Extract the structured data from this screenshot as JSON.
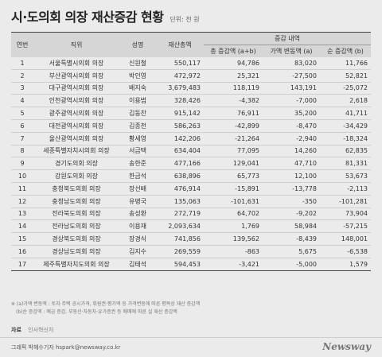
{
  "title": "시·도의회 의장 재산증감 현황",
  "unit": "단위: 천 원",
  "headers": {
    "no": "연번",
    "position": "직위",
    "name": "성명",
    "total": "재산총액",
    "change_group": "증감 내역",
    "total_change": "총 증감액 (a+b)",
    "price_change": "가액 변동액 (a)",
    "net_change": "순 증감액 (b)"
  },
  "rows": [
    {
      "no": "1",
      "position": "서울특별시의회 의장",
      "name": "신원철",
      "total": "550,117",
      "total_change": "94,786",
      "price_change": "83,020",
      "net_change": "11,766"
    },
    {
      "no": "2",
      "position": "부산광역시의회 의장",
      "name": "박인영",
      "total": "472,972",
      "total_change": "25,321",
      "price_change": "-27,500",
      "net_change": "52,821"
    },
    {
      "no": "3",
      "position": "대구광역시의회 의장",
      "name": "배지숙",
      "total": "3,679,483",
      "total_change": "118,119",
      "price_change": "143,191",
      "net_change": "-25,072"
    },
    {
      "no": "4",
      "position": "인천광역시의회 의장",
      "name": "이용범",
      "total": "328,426",
      "total_change": "-4,382",
      "price_change": "-7,000",
      "net_change": "2,618"
    },
    {
      "no": "5",
      "position": "광주광역시의회 의장",
      "name": "김동찬",
      "total": "915,142",
      "total_change": "76,911",
      "price_change": "35,200",
      "net_change": "41,711"
    },
    {
      "no": "6",
      "position": "대전광역시의회 의장",
      "name": "김종천",
      "total": "586,263",
      "total_change": "-42,899",
      "price_change": "-8,470",
      "net_change": "-34,429"
    },
    {
      "no": "7",
      "position": "울산광역시의회 의장",
      "name": "황세영",
      "total": "142,206",
      "total_change": "-21,264",
      "price_change": "-2,940",
      "net_change": "-18,324"
    },
    {
      "no": "8",
      "position": "세종특별자치시의회 의장",
      "name": "서금택",
      "total": "634,404",
      "total_change": "77,095",
      "price_change": "14,260",
      "net_change": "62,835"
    },
    {
      "no": "9",
      "position": "경기도의회 의장",
      "name": "송한준",
      "total": "477,166",
      "total_change": "129,041",
      "price_change": "47,710",
      "net_change": "81,331"
    },
    {
      "no": "10",
      "position": "강원도의회 의장",
      "name": "한금석",
      "total": "638,896",
      "total_change": "65,773",
      "price_change": "12,100",
      "net_change": "53,673"
    },
    {
      "no": "11",
      "position": "충청북도의회 의장",
      "name": "장선배",
      "total": "476,914",
      "total_change": "-15,891",
      "price_change": "-13,778",
      "net_change": "-2,113"
    },
    {
      "no": "12",
      "position": "충청남도의회 의장",
      "name": "유병국",
      "total": "135,063",
      "total_change": "-101,631",
      "price_change": "-350",
      "net_change": "-101,281"
    },
    {
      "no": "13",
      "position": "전라북도의회 의장",
      "name": "송성환",
      "total": "272,719",
      "total_change": "64,702",
      "price_change": "-9,202",
      "net_change": "73,904"
    },
    {
      "no": "14",
      "position": "전라남도의회 의장",
      "name": "이용재",
      "total": "2,093,634",
      "total_change": "1,769",
      "price_change": "58,984",
      "net_change": "-57,215"
    },
    {
      "no": "15",
      "position": "경상북도의회 의장",
      "name": "장경식",
      "total": "741,856",
      "total_change": "139,562",
      "price_change": "-8,439",
      "net_change": "148,001"
    },
    {
      "no": "16",
      "position": "경상남도의회 의장",
      "name": "김지수",
      "total": "269,559",
      "total_change": "-863",
      "price_change": "5,675",
      "net_change": "-6,538"
    },
    {
      "no": "17",
      "position": "제주특별자치도의회 의장",
      "name": "김태석",
      "total": "594,453",
      "total_change": "-3,421",
      "price_change": "-5,000",
      "net_change": "1,579"
    }
  ],
  "notes": [
    "※ (a)가액 변동액 : 토지·주택 공시가격, 회원권·평가액 등 가격변동에 따른 평목상 재산 증감액",
    "(b)순 증감액 : 예금 증감, 부동산·자동차·유가증권 등 매매에 따른 실 재산 증감액"
  ],
  "source_label": "자료",
  "source_value": "인사혁신처",
  "credit": "그래픽 박혜수기자 hspark@newsway.co.kr",
  "brand": "Newsway"
}
